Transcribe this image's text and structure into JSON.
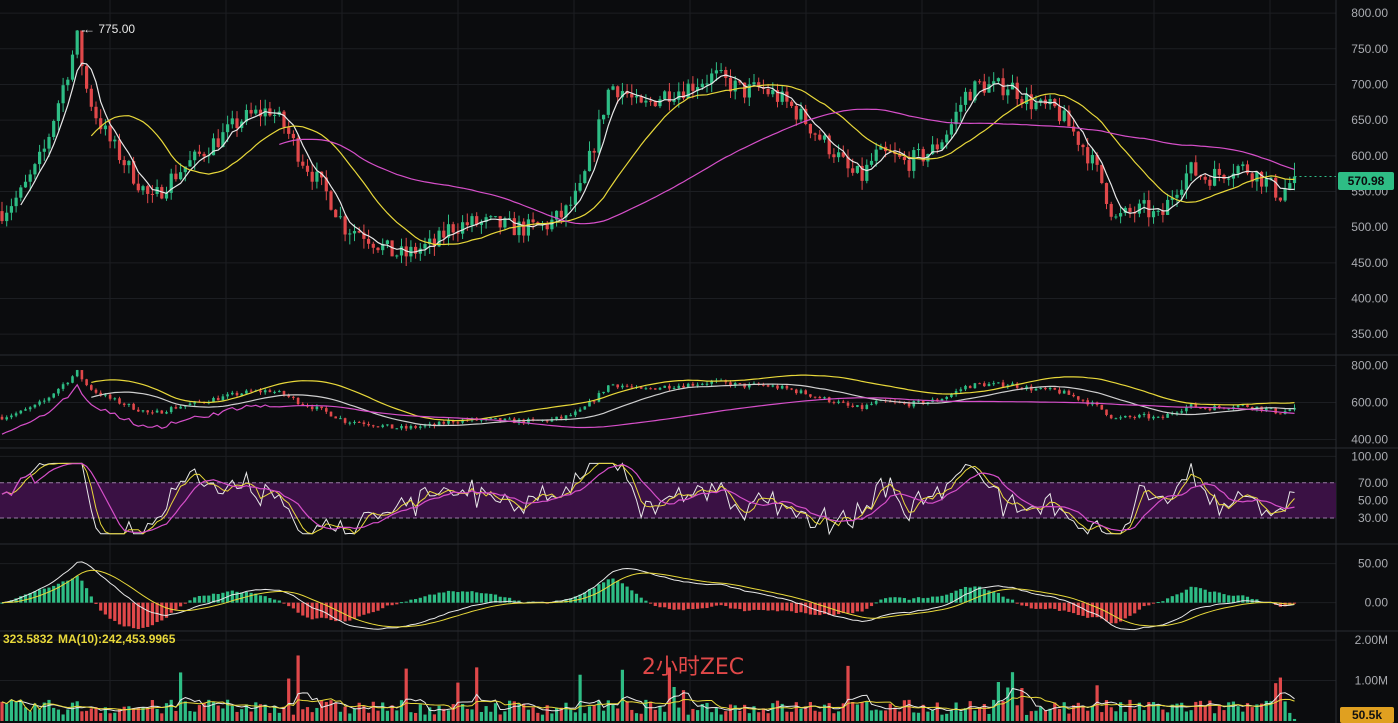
{
  "colors": {
    "background": "#0b0c0e",
    "grid": "#1c1e22",
    "up": "#2ebd85",
    "down": "#e0484a",
    "ma_fast": "#e8e8e8",
    "ma_mid": "#e8d83a",
    "ma_slow": "#d64fc9",
    "rsi_band": "#3a1144",
    "price_tag": "#2ebd85",
    "volume_tag": "#e0a020",
    "watermark": "#e04848"
  },
  "annotations": {
    "high_marker": "← 775.00",
    "last_price": "570.98",
    "volume_last": "50.5k",
    "ma_label_prefix": "323.5832",
    "ma10_label": "MA(10):242,453.9965",
    "watermark": "2小时ZEC"
  },
  "chart_data": [
    {
      "type": "candlestick",
      "panel": "price",
      "ylim": [
        325,
        810
      ],
      "ticks": [
        "800.00",
        "750.00",
        "700.00",
        "650.00",
        "600.00",
        "550.00",
        "500.00",
        "450.00",
        "400.00",
        "350.00"
      ],
      "tick_values": [
        800,
        750,
        700,
        650,
        600,
        550,
        500,
        450,
        400,
        350
      ],
      "anchors": [
        [
          0,
          520
        ],
        [
          20,
          545
        ],
        [
          35,
          580
        ],
        [
          45,
          610
        ],
        [
          55,
          660
        ],
        [
          68,
          720
        ],
        [
          78,
          768
        ],
        [
          85,
          700
        ],
        [
          95,
          660
        ],
        [
          110,
          620
        ],
        [
          125,
          590
        ],
        [
          140,
          560
        ],
        [
          152,
          535
        ],
        [
          165,
          560
        ],
        [
          180,
          580
        ],
        [
          195,
          595
        ],
        [
          210,
          615
        ],
        [
          225,
          630
        ],
        [
          240,
          650
        ],
        [
          255,
          658
        ],
        [
          270,
          665
        ],
        [
          285,
          640
        ],
        [
          300,
          600
        ],
        [
          315,
          570
        ],
        [
          330,
          540
        ],
        [
          345,
          500
        ],
        [
          360,
          495
        ],
        [
          375,
          480
        ],
        [
          390,
          465
        ],
        [
          405,
          460
        ],
        [
          420,
          470
        ],
        [
          435,
          475
        ],
        [
          450,
          500
        ],
        [
          470,
          505
        ],
        [
          490,
          505
        ],
        [
          510,
          500
        ],
        [
          530,
          498
        ],
        [
          550,
          505
        ],
        [
          565,
          520
        ],
        [
          580,
          550
        ],
        [
          595,
          620
        ],
        [
          610,
          700
        ],
        [
          625,
          690
        ],
        [
          640,
          665
        ],
        [
          655,
          680
        ],
        [
          670,
          690
        ],
        [
          685,
          695
        ],
        [
          700,
          705
        ],
        [
          715,
          712
        ],
        [
          730,
          700
        ],
        [
          745,
          690
        ],
        [
          760,
          695
        ],
        [
          775,
          685
        ],
        [
          790,
          670
        ],
        [
          805,
          650
        ],
        [
          820,
          625
        ],
        [
          835,
          605
        ],
        [
          850,
          575
        ],
        [
          862,
          570
        ],
        [
          875,
          600
        ],
        [
          890,
          600
        ],
        [
          905,
          590
        ],
        [
          920,
          598
        ],
        [
          935,
          610
        ],
        [
          950,
          640
        ],
        [
          965,
          685
        ],
        [
          980,
          700
        ],
        [
          995,
          695
        ],
        [
          1010,
          700
        ],
        [
          1025,
          680
        ],
        [
          1040,
          668
        ],
        [
          1055,
          665
        ],
        [
          1070,
          640
        ],
        [
          1085,
          610
        ],
        [
          1100,
          570
        ],
        [
          1115,
          510
        ],
        [
          1130,
          520
        ],
        [
          1145,
          525
        ],
        [
          1160,
          510
        ],
        [
          1175,
          555
        ],
        [
          1190,
          580
        ],
        [
          1205,
          570
        ],
        [
          1220,
          575
        ],
        [
          1235,
          585
        ],
        [
          1250,
          580
        ],
        [
          1265,
          565
        ],
        [
          1280,
          545
        ],
        [
          1295,
          570
        ]
      ],
      "high_value": 775.0,
      "last_value": 570.98,
      "ma_lines": [
        "fast",
        "mid",
        "slow"
      ]
    },
    {
      "type": "candlestick",
      "panel": "secondary-price",
      "ylim": [
        370,
        830
      ],
      "ticks": [
        "800.00",
        "600.00",
        "400.00"
      ],
      "tick_values": [
        800,
        600,
        400
      ]
    },
    {
      "type": "line",
      "panel": "rsi",
      "ylim": [
        5,
        105
      ],
      "band": [
        30,
        70
      ],
      "ticks": [
        "100.00",
        "70.00",
        "50.00",
        "30.00"
      ],
      "tick_values": [
        100,
        70,
        50,
        30
      ]
    },
    {
      "type": "histogram",
      "panel": "macd",
      "ylim": [
        -35,
        70
      ],
      "ticks": [
        "50.00",
        "0.00"
      ],
      "tick_values": [
        50,
        0
      ]
    },
    {
      "type": "bar",
      "panel": "volume",
      "ylim": [
        0,
        2200000
      ],
      "ticks": [
        "2.00M",
        "1.00M"
      ],
      "tick_values": [
        2000000,
        1000000
      ],
      "last_value": "50.5k"
    }
  ]
}
